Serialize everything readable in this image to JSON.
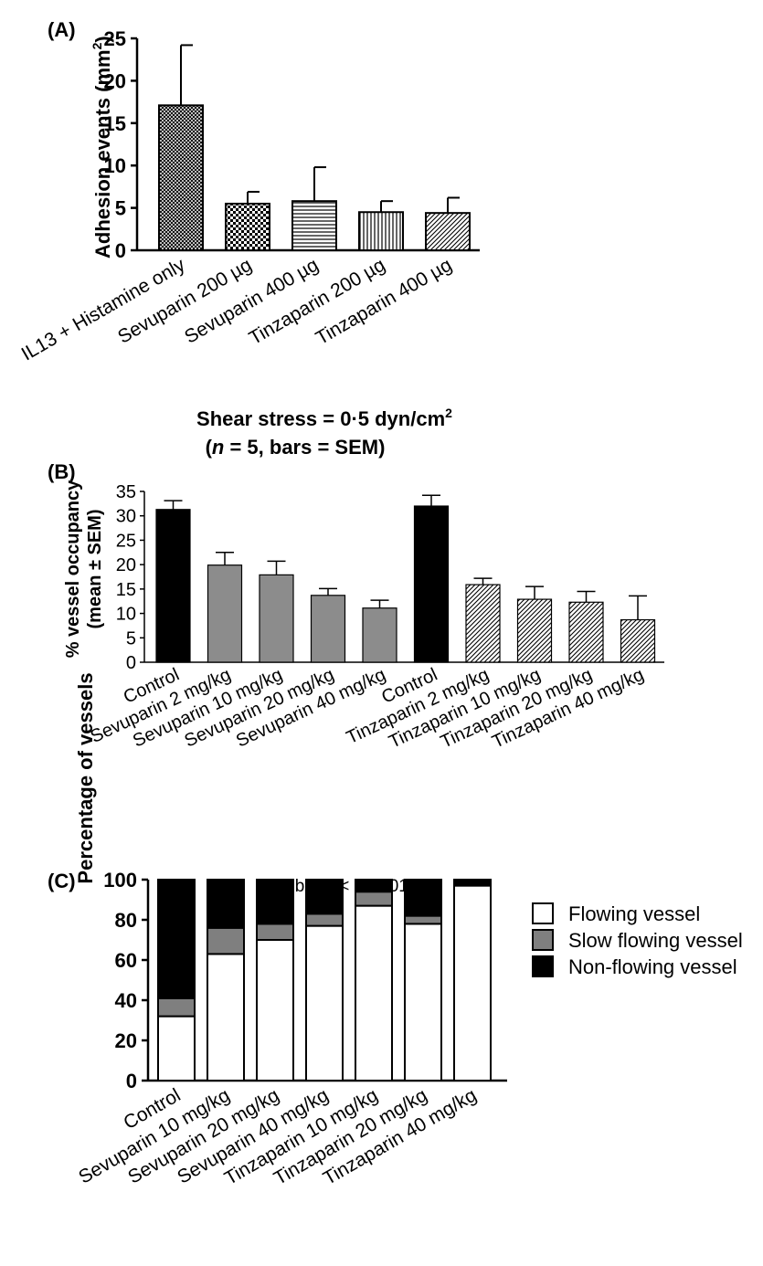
{
  "chart_data": [
    {
      "panel": "(A)",
      "type": "bar",
      "ylabel": "Adhesion events (mm",
      "ylabel_sup": "2",
      "ylabel_close": ")",
      "ylim": [
        0,
        25
      ],
      "yticks": [
        "0",
        "5",
        "10",
        "15",
        "20",
        "25"
      ],
      "categories": [
        "IL13 + Histamine only",
        "Sevuparin 200 µg",
        "Sevuparin 400 µg",
        "Tinzaparin 200 µg",
        "Tinzaparin 400 µg"
      ],
      "values": [
        17.1,
        5.5,
        5.8,
        4.5,
        4.4
      ],
      "errors": [
        7.1,
        1.4,
        4.0,
        1.3,
        1.8
      ],
      "patterns": [
        "crosshatch",
        "checker",
        "hlines",
        "vlines",
        "diag"
      ],
      "note_line1": "Shear stress = 0·5 dyn/cm",
      "note_line1_sup": "2",
      "note_line2_open": "(",
      "note_line2_n": "n",
      "note_line2_rest": " = 5, bars = SEM)"
    },
    {
      "panel": "(B)",
      "type": "bar",
      "ylabel_line1": "% vessel occupancy",
      "ylabel_line2": "(mean ± SEM)",
      "ylim": [
        0,
        35
      ],
      "yticks": [
        "0",
        "5",
        "10",
        "15",
        "20",
        "25",
        "30",
        "35"
      ],
      "categories": [
        "Control",
        "Sevuparin 2 mg/kg",
        "Sevuparin 10 mg/kg",
        "Sevuparin 20 mg/kg",
        "Sevuparin 40 mg/kg",
        "Control",
        "Tinzaparin 2 mg/kg",
        "Tinzaparin 10 mg/kg",
        "Tinzaparin 20 mg/kg",
        "Tinzaparin 40 mg/kg"
      ],
      "values": [
        31.3,
        19.9,
        17.9,
        13.7,
        11.1,
        32.0,
        15.9,
        12.9,
        12.3,
        8.7
      ],
      "errors": [
        1.8,
        2.6,
        2.8,
        1.4,
        1.6,
        2.2,
        1.3,
        2.6,
        2.2,
        4.9
      ],
      "fills": [
        "black",
        "gray",
        "gray",
        "gray",
        "gray",
        "black",
        "diag",
        "diag",
        "diag",
        "diag"
      ]
    },
    {
      "panel": "(C)",
      "type": "bar",
      "stacked": true,
      "title_prefix": "Global ",
      "title_italic": "P",
      "title_suffix": " < 0·0001",
      "ylabel": "Percentage of vessels",
      "ylim": [
        0,
        100
      ],
      "yticks": [
        "0",
        "20",
        "40",
        "60",
        "80",
        "100"
      ],
      "categories": [
        "Control",
        "Sevuparin 10 mg/kg",
        "Sevuparin 20 mg/kg",
        "Sevuparin 40 mg/kg",
        "Tinzaparin 10 mg/kg",
        "Tinzaparin 20 mg/kg",
        "Tinzaparin 40 mg/kg"
      ],
      "series": [
        {
          "name": "Flowing vessel",
          "color": "#ffffff",
          "values": [
            32,
            63,
            70,
            77,
            87,
            78,
            97
          ]
        },
        {
          "name": "Slow flowing vessel",
          "color": "#7f7f7f",
          "values": [
            9,
            13,
            8,
            6,
            7,
            4,
            0
          ]
        },
        {
          "name": "Non-flowing vessel",
          "color": "#000000",
          "values": [
            59,
            24,
            22,
            17,
            6,
            18,
            3
          ]
        }
      ],
      "legend_position": "right"
    }
  ]
}
